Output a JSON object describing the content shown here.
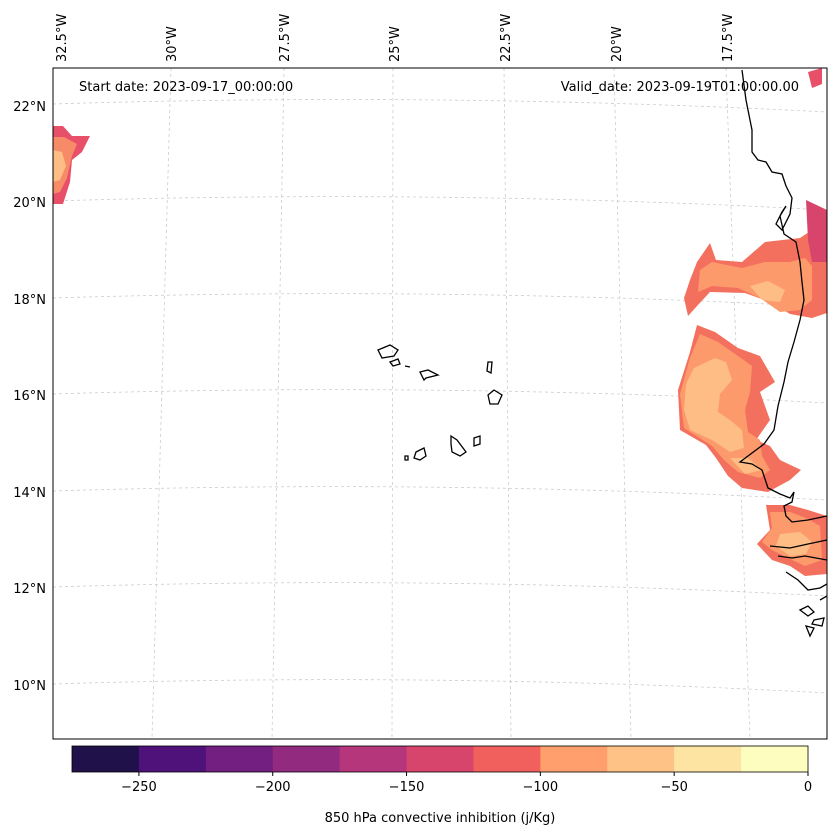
{
  "map": {
    "start_label": "Start date: 2023-09-17_00:00:00",
    "valid_label": "Valid_date: 2023-09-19T01:00:00.00",
    "lon_labels": [
      "32.5°W",
      "30°W",
      "27.5°W",
      "25°W",
      "22.5°W",
      "20°W",
      "17.5°W"
    ],
    "lat_labels": [
      "22°N",
      "20°N",
      "18°N",
      "16°N",
      "14°N",
      "12°N",
      "10°N"
    ],
    "gridlines": true,
    "region": "Cabo Verde islands and West African coast (Senegal, Gambia, Guinea-Bissau)"
  },
  "colorbar": {
    "label": "850 hPa convective inhibition (j/Kg)",
    "ticks": [
      "−250",
      "−200",
      "−150",
      "−100",
      "−50",
      "0"
    ],
    "range": [
      -275,
      0
    ],
    "bin_width": 25,
    "colors": [
      "#050417",
      "#21114a",
      "#4f127b",
      "#721f81",
      "#922b80",
      "#b5367a",
      "#d8456c",
      "#f1605d",
      "#fe9f6d",
      "#fec287",
      "#fde4a2",
      "#fcfdbf"
    ]
  },
  "chart_data": {
    "type": "contourf",
    "colorbar_label": "850 hPa convective inhibition (j/Kg)",
    "levels": [
      -275,
      -250,
      -225,
      -200,
      -175,
      -150,
      -125,
      -100,
      -75,
      -50,
      -25,
      0
    ],
    "ticks": [
      -250,
      -200,
      -150,
      -100,
      -50,
      0
    ],
    "areas": [
      {
        "where": "NW corner near 21°N 33°W",
        "range": [
          -100,
          -25
        ]
      },
      {
        "where": "off Mauritania coast ~17.5–19°N",
        "range": [
          -125,
          -25
        ]
      },
      {
        "where": "off Senegal coast ~14–16.5°N",
        "range": [
          -100,
          -25
        ]
      },
      {
        "where": "Gambia / Casamance ~12–13.5°N",
        "range": [
          -100,
          -25
        ]
      }
    ]
  }
}
